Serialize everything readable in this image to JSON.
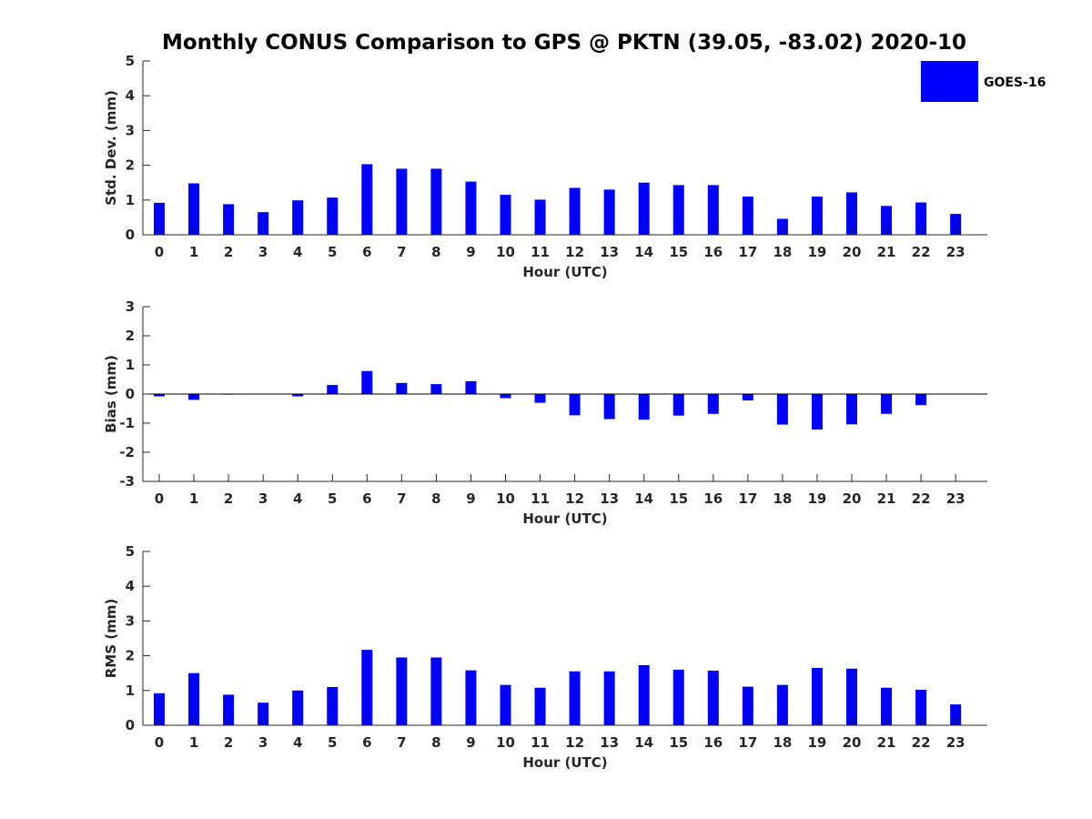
{
  "title": "Monthly CONUS Comparison to GPS @ PKTN (39.05, -83.02) 2020-10",
  "legend": {
    "label": "GOES-16"
  },
  "bar_color": "#0000ff",
  "chart_data": [
    {
      "type": "bar",
      "ylabel": "Std. Dev. (mm)",
      "xlabel": "Hour (UTC)",
      "ylim": [
        0,
        5
      ],
      "yticks": [
        0,
        1,
        2,
        3,
        4,
        5
      ],
      "categories": [
        "0",
        "1",
        "2",
        "3",
        "4",
        "5",
        "6",
        "7",
        "8",
        "9",
        "10",
        "11",
        "12",
        "13",
        "14",
        "15",
        "16",
        "17",
        "18",
        "19",
        "20",
        "21",
        "22",
        "23"
      ],
      "series": [
        {
          "name": "GOES-16",
          "values": [
            0.92,
            1.48,
            0.88,
            0.65,
            0.99,
            1.07,
            2.03,
            1.9,
            1.9,
            1.53,
            1.15,
            1.01,
            1.35,
            1.3,
            1.5,
            1.43,
            1.43,
            1.1,
            0.46,
            1.1,
            1.22,
            0.83,
            0.93,
            0.6
          ]
        }
      ],
      "legend": "top-right"
    },
    {
      "type": "bar",
      "ylabel": "Bias (mm)",
      "xlabel": "Hour (UTC)",
      "ylim": [
        -3,
        3
      ],
      "yticks": [
        -3,
        -2,
        -1,
        0,
        1,
        2,
        3
      ],
      "zero_line": true,
      "categories": [
        "0",
        "1",
        "2",
        "3",
        "4",
        "5",
        "6",
        "7",
        "8",
        "9",
        "10",
        "11",
        "12",
        "13",
        "14",
        "15",
        "16",
        "17",
        "18",
        "19",
        "20",
        "21",
        "22",
        "23"
      ],
      "series": [
        {
          "name": "GOES-16",
          "values": [
            -0.08,
            -0.2,
            -0.02,
            0.0,
            -0.08,
            0.31,
            0.79,
            0.38,
            0.34,
            0.44,
            -0.14,
            -0.3,
            -0.73,
            -0.86,
            -0.88,
            -0.74,
            -0.68,
            -0.22,
            -1.05,
            -1.22,
            -1.04,
            -0.68,
            -0.38,
            0.0
          ]
        }
      ]
    },
    {
      "type": "bar",
      "ylabel": "RMS (mm)",
      "xlabel": "Hour (UTC)",
      "ylim": [
        0,
        5
      ],
      "yticks": [
        0,
        1,
        2,
        3,
        4,
        5
      ],
      "categories": [
        "0",
        "1",
        "2",
        "3",
        "4",
        "5",
        "6",
        "7",
        "8",
        "9",
        "10",
        "11",
        "12",
        "13",
        "14",
        "15",
        "16",
        "17",
        "18",
        "19",
        "20",
        "21",
        "22",
        "23"
      ],
      "series": [
        {
          "name": "GOES-16",
          "values": [
            0.92,
            1.5,
            0.88,
            0.65,
            1.0,
            1.1,
            2.17,
            1.95,
            1.95,
            1.58,
            1.16,
            1.08,
            1.55,
            1.55,
            1.73,
            1.6,
            1.57,
            1.11,
            1.16,
            1.65,
            1.63,
            1.08,
            1.02,
            0.6
          ]
        }
      ]
    }
  ]
}
